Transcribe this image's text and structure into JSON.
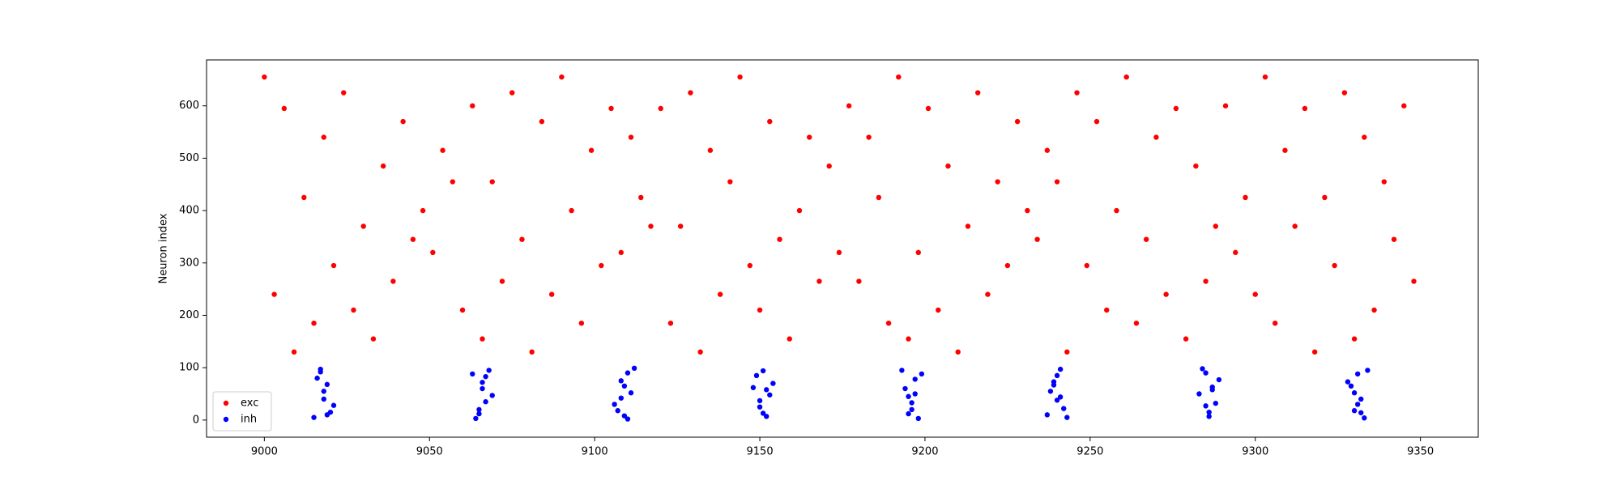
{
  "chart_data": {
    "type": "scatter",
    "ylabel": "Neuron index",
    "xlim": [
      8982.5,
      9367.5
    ],
    "ylim": [
      -32.7,
      687.7
    ],
    "xticks": [
      9000,
      9050,
      9100,
      9150,
      9200,
      9250,
      9300,
      9350
    ],
    "yticks": [
      0,
      100,
      200,
      300,
      400,
      500,
      600
    ],
    "legend": "lower left",
    "grid": false,
    "series": [
      {
        "name": "exc",
        "color": "#ff0000",
        "x": [
          9000,
          9003,
          9006,
          9009,
          9012,
          9015,
          9018,
          9021,
          9024,
          9027,
          9030,
          9033,
          9036,
          9039,
          9042,
          9045,
          9048,
          9051,
          9054,
          9057,
          9060,
          9063,
          9066,
          9069,
          9072,
          9075,
          9078,
          9081,
          9084,
          9087,
          9090,
          9093,
          9096,
          9099,
          9102,
          9105,
          9108,
          9111,
          9114,
          9117,
          9120,
          9123,
          9126,
          9129,
          9132,
          9135,
          9138,
          9141,
          9144,
          9147,
          9150,
          9153,
          9156,
          9159,
          9162,
          9165,
          9168,
          9171,
          9174,
          9177,
          9180,
          9183,
          9186,
          9189,
          9192,
          9195,
          9198,
          9201,
          9204,
          9207,
          9210,
          9213,
          9216,
          9219,
          9222,
          9225,
          9228,
          9231,
          9234,
          9237,
          9240,
          9243,
          9246,
          9249,
          9252,
          9255,
          9258,
          9261,
          9264,
          9267,
          9270,
          9273,
          9276,
          9279,
          9282,
          9285,
          9288,
          9291,
          9294,
          9297,
          9300,
          9303,
          9306,
          9309,
          9312,
          9315,
          9318,
          9321,
          9324,
          9327,
          9330,
          9333,
          9336,
          9339,
          9342,
          9345,
          9348
        ],
        "values": [
          655,
          240,
          595,
          130,
          425,
          185,
          540,
          295,
          625,
          210,
          370,
          155,
          485,
          265,
          570,
          345,
          400,
          320,
          515,
          455,
          210,
          600,
          155,
          455,
          265,
          625,
          345,
          130,
          570,
          240,
          655,
          400,
          185,
          515,
          295,
          595,
          320,
          540,
          425,
          370,
          595,
          185,
          370,
          625,
          130,
          515,
          240,
          455,
          655,
          295,
          210,
          570,
          345,
          155,
          400,
          540,
          265,
          485,
          320,
          600,
          265,
          540,
          425,
          185,
          655,
          155,
          320,
          595,
          210,
          485,
          130,
          370,
          625,
          240,
          455,
          295,
          570,
          400,
          345,
          515,
          455,
          130,
          625,
          295,
          570,
          210,
          400,
          655,
          185,
          345,
          540,
          240,
          595,
          155,
          485,
          265,
          370,
          600,
          320,
          425,
          240,
          655,
          185,
          515,
          370,
          595,
          130,
          425,
          295,
          625,
          155,
          540,
          210,
          455,
          345,
          600,
          265
        ]
      },
      {
        "name": "inh",
        "color": "#0000ff",
        "x": [
          9015,
          9017,
          9018,
          9019,
          9020,
          9016,
          9018,
          9021,
          9017,
          9019,
          9063,
          9065,
          9066,
          9067,
          9068,
          9064,
          9066,
          9069,
          9065,
          9067,
          9106,
          9108,
          9109,
          9110,
          9111,
          9107,
          9109,
          9112,
          9108,
          9110,
          9148,
          9150,
          9151,
          9152,
          9153,
          9149,
          9151,
          9154,
          9150,
          9152,
          9193,
          9195,
          9196,
          9197,
          9198,
          9194,
          9196,
          9199,
          9195,
          9197,
          9237,
          9239,
          9240,
          9241,
          9242,
          9238,
          9240,
          9243,
          9239,
          9241,
          9283,
          9285,
          9286,
          9287,
          9288,
          9284,
          9286,
          9289,
          9285,
          9287,
          9328,
          9330,
          9331,
          9332,
          9333,
          9329,
          9331,
          9334,
          9330,
          9332
        ],
        "values": [
          5,
          92,
          40,
          68,
          15,
          80,
          55,
          28,
          97,
          10,
          88,
          12,
          60,
          35,
          95,
          3,
          72,
          47,
          20,
          83,
          30,
          75,
          8,
          90,
          52,
          18,
          65,
          99,
          42,
          2,
          62,
          25,
          94,
          7,
          48,
          85,
          13,
          70,
          37,
          58,
          95,
          45,
          20,
          78,
          3,
          60,
          33,
          88,
          12,
          50,
          10,
          67,
          38,
          97,
          22,
          55,
          85,
          5,
          73,
          44,
          50,
          90,
          15,
          63,
          32,
          98,
          7,
          77,
          27,
          58,
          73,
          18,
          88,
          40,
          4,
          65,
          30,
          95,
          52,
          14
        ]
      }
    ]
  }
}
